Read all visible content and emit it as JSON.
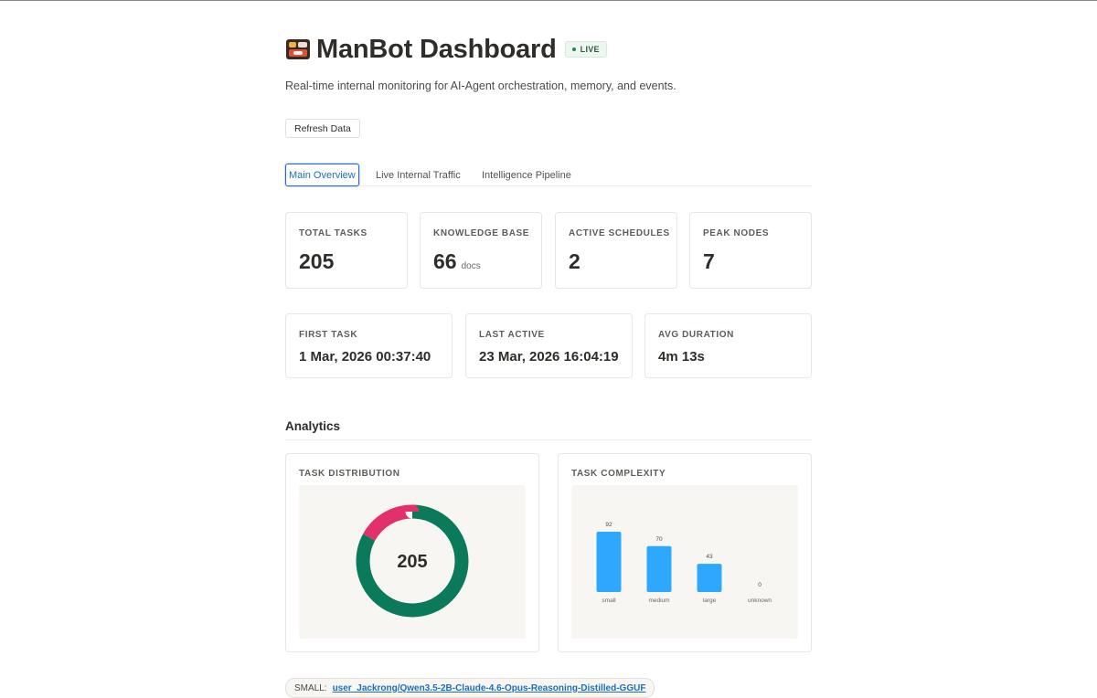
{
  "header": {
    "title": "ManBot Dashboard",
    "logo_icon": "bento-box-icon",
    "live_badge": "LIVE",
    "subtitle": "Real-time internal monitoring for AI-Agent orchestration, memory, and events."
  },
  "toolbar": {
    "refresh_label": "Refresh Data"
  },
  "tabs": [
    {
      "label": "Main Overview",
      "active": true
    },
    {
      "label": "Live Internal Traffic",
      "active": false
    },
    {
      "label": "Intelligence Pipeline",
      "active": false
    }
  ],
  "stats": {
    "total_tasks": {
      "label": "TOTAL TASKS",
      "value": "205"
    },
    "knowledge_base": {
      "label": "KNOWLEDGE BASE",
      "value": "66",
      "unit": "docs"
    },
    "active_schedules": {
      "label": "ACTIVE SCHEDULES",
      "value": "2"
    },
    "peak_nodes": {
      "label": "PEAK NODES",
      "value": "7"
    },
    "first_task": {
      "label": "FIRST TASK",
      "value": "1 Mar, 2026 00:37:40"
    },
    "last_active": {
      "label": "LAST ACTIVE",
      "value": "23 Mar, 2026 16:04:19"
    },
    "avg_duration": {
      "label": "AVG DURATION",
      "value": "4m 13s"
    }
  },
  "analytics": {
    "title": "Analytics"
  },
  "chart_data": [
    {
      "type": "pie",
      "title": "TASK DISTRIBUTION",
      "center_label": "205",
      "donut": true,
      "slices": [
        {
          "value": 170,
          "color": "#0b7a5a"
        },
        {
          "value": 35,
          "color": "#e1306c"
        }
      ]
    },
    {
      "type": "bar",
      "title": "TASK COMPLEXITY",
      "categories": [
        "small",
        "medium",
        "large",
        "unknown"
      ],
      "values": [
        92,
        70,
        43,
        0
      ],
      "color": "#2ea8ff",
      "ylim": [
        0,
        92
      ]
    }
  ],
  "footer_pill": {
    "prefix": "SMALL:",
    "link": "user_Jackrong/Qwen3.5-2B-Claude-4.6-Opus-Reasoning-Distilled-GGUF"
  }
}
